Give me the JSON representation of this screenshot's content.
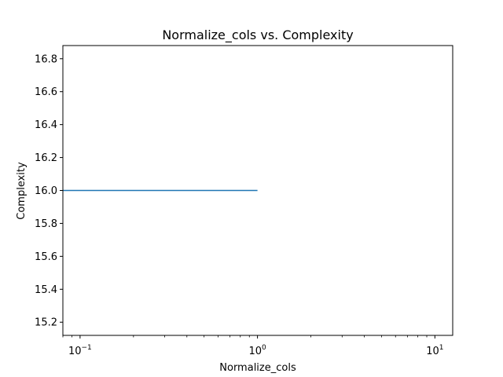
{
  "chart_data": {
    "type": "line",
    "title": "Normalize_cols vs. Complexity",
    "xlabel": "Normalize_cols",
    "ylabel": "Complexity",
    "x_scale": "log",
    "xlim": [
      0.08,
      12.6
    ],
    "ylim": [
      15.12,
      16.88
    ],
    "x_ticks": [
      {
        "value": 0.1,
        "base": "10",
        "exp": "−1"
      },
      {
        "value": 1,
        "base": "10",
        "exp": "0"
      },
      {
        "value": 10,
        "base": "10",
        "exp": "1"
      }
    ],
    "y_ticks": [
      15.2,
      15.4,
      15.6,
      15.8,
      16.0,
      16.2,
      16.4,
      16.6,
      16.8
    ],
    "y_tick_labels": [
      "15.2",
      "15.4",
      "15.6",
      "15.8",
      "16.0",
      "16.2",
      "16.4",
      "16.6",
      "16.8"
    ],
    "grid": false,
    "series": [
      {
        "x": [
          0.08,
          1
        ],
        "y": [
          16.0,
          16.0
        ],
        "color": "#1f77b4"
      }
    ]
  }
}
